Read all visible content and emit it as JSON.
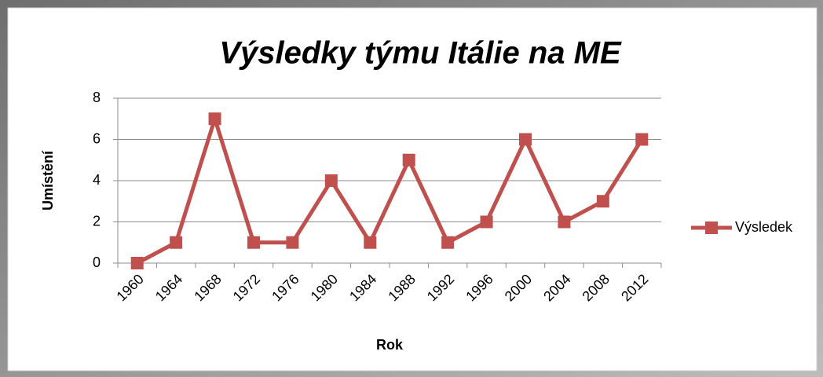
{
  "chart_data": {
    "type": "line",
    "title": "Výsledky týmu Itálie na ME",
    "x_label": "Rok",
    "y_label": "Umístění",
    "categories": [
      "1960",
      "1964",
      "1968",
      "1972",
      "1976",
      "1980",
      "1984",
      "1988",
      "1992",
      "1996",
      "2000",
      "2004",
      "2008",
      "2012"
    ],
    "series": [
      {
        "name": "Výsledek",
        "color": "#c0504d",
        "values": [
          0,
          1,
          7,
          1,
          1,
          4,
          1,
          5,
          1,
          2,
          6,
          2,
          3,
          6
        ]
      }
    ],
    "ylim": [
      0,
      8
    ],
    "yticks": [
      0,
      2,
      4,
      6,
      8
    ],
    "grid": true,
    "legend": "right"
  }
}
